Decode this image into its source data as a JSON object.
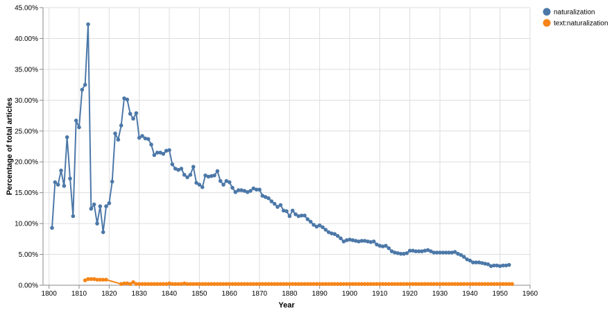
{
  "chart_data": {
    "type": "line",
    "xlabel": "Year",
    "ylabel": "Percentage of total articles",
    "xlim": [
      1798,
      1960
    ],
    "ylim": [
      0,
      0.45
    ],
    "x_ticks": [
      "1800",
      "1810",
      "1820",
      "1830",
      "1840",
      "1850",
      "1860",
      "1870",
      "1880",
      "1890",
      "1900",
      "1910",
      "1920",
      "1930",
      "1940",
      "1950",
      "1960"
    ],
    "y_ticks": [
      "0.00%",
      "5.00%",
      "10.00%",
      "15.00%",
      "20.00%",
      "25.00%",
      "30.00%",
      "35.00%",
      "40.00%",
      "45.00%"
    ],
    "grid": true,
    "legend_position": "top-right",
    "series": [
      {
        "name": "naturalization",
        "color": "#4c78a8",
        "points": [
          [
            1801,
            0.093
          ],
          [
            1802,
            0.167
          ],
          [
            1803,
            0.163
          ],
          [
            1804,
            0.186
          ],
          [
            1805,
            0.161
          ],
          [
            1806,
            0.24
          ],
          [
            1807,
            0.173
          ],
          [
            1808,
            0.112
          ],
          [
            1809,
            0.267
          ],
          [
            1810,
            0.256
          ],
          [
            1811,
            0.317
          ],
          [
            1812,
            0.325
          ],
          [
            1813,
            0.423
          ],
          [
            1814,
            0.124
          ],
          [
            1815,
            0.131
          ],
          [
            1816,
            0.1
          ],
          [
            1817,
            0.128
          ],
          [
            1818,
            0.086
          ],
          [
            1819,
            0.128
          ],
          [
            1820,
            0.133
          ],
          [
            1821,
            0.168
          ],
          [
            1822,
            0.246
          ],
          [
            1823,
            0.236
          ],
          [
            1824,
            0.259
          ],
          [
            1825,
            0.303
          ],
          [
            1826,
            0.301
          ],
          [
            1827,
            0.278
          ],
          [
            1828,
            0.27
          ],
          [
            1829,
            0.279
          ],
          [
            1830,
            0.239
          ],
          [
            1831,
            0.242
          ],
          [
            1832,
            0.238
          ],
          [
            1833,
            0.237
          ],
          [
            1834,
            0.228
          ],
          [
            1835,
            0.211
          ],
          [
            1836,
            0.215
          ],
          [
            1837,
            0.215
          ],
          [
            1838,
            0.213
          ],
          [
            1839,
            0.218
          ],
          [
            1840,
            0.219
          ],
          [
            1841,
            0.196
          ],
          [
            1842,
            0.189
          ],
          [
            1843,
            0.187
          ],
          [
            1844,
            0.189
          ],
          [
            1845,
            0.179
          ],
          [
            1846,
            0.175
          ],
          [
            1847,
            0.179
          ],
          [
            1848,
            0.192
          ],
          [
            1849,
            0.166
          ],
          [
            1850,
            0.163
          ],
          [
            1851,
            0.159
          ],
          [
            1852,
            0.178
          ],
          [
            1853,
            0.176
          ],
          [
            1854,
            0.177
          ],
          [
            1855,
            0.178
          ],
          [
            1856,
            0.185
          ],
          [
            1857,
            0.169
          ],
          [
            1858,
            0.163
          ],
          [
            1859,
            0.169
          ],
          [
            1860,
            0.167
          ],
          [
            1861,
            0.158
          ],
          [
            1862,
            0.151
          ],
          [
            1863,
            0.154
          ],
          [
            1864,
            0.154
          ],
          [
            1865,
            0.153
          ],
          [
            1866,
            0.151
          ],
          [
            1867,
            0.153
          ],
          [
            1868,
            0.157
          ],
          [
            1869,
            0.155
          ],
          [
            1870,
            0.155
          ],
          [
            1871,
            0.145
          ],
          [
            1872,
            0.143
          ],
          [
            1873,
            0.141
          ],
          [
            1874,
            0.136
          ],
          [
            1875,
            0.132
          ],
          [
            1876,
            0.127
          ],
          [
            1877,
            0.13
          ],
          [
            1878,
            0.121
          ],
          [
            1879,
            0.12
          ],
          [
            1880,
            0.112
          ],
          [
            1881,
            0.121
          ],
          [
            1882,
            0.115
          ],
          [
            1883,
            0.112
          ],
          [
            1884,
            0.113
          ],
          [
            1885,
            0.113
          ],
          [
            1886,
            0.107
          ],
          [
            1887,
            0.103
          ],
          [
            1888,
            0.098
          ],
          [
            1889,
            0.095
          ],
          [
            1890,
            0.097
          ],
          [
            1891,
            0.094
          ],
          [
            1892,
            0.09
          ],
          [
            1893,
            0.086
          ],
          [
            1894,
            0.084
          ],
          [
            1895,
            0.083
          ],
          [
            1896,
            0.08
          ],
          [
            1897,
            0.076
          ],
          [
            1898,
            0.071
          ],
          [
            1899,
            0.073
          ],
          [
            1900,
            0.074
          ],
          [
            1901,
            0.073
          ],
          [
            1902,
            0.072
          ],
          [
            1903,
            0.071
          ],
          [
            1904,
            0.072
          ],
          [
            1905,
            0.072
          ],
          [
            1906,
            0.071
          ],
          [
            1907,
            0.07
          ],
          [
            1908,
            0.071
          ],
          [
            1909,
            0.066
          ],
          [
            1910,
            0.064
          ],
          [
            1911,
            0.063
          ],
          [
            1912,
            0.064
          ],
          [
            1913,
            0.06
          ],
          [
            1914,
            0.055
          ],
          [
            1915,
            0.053
          ],
          [
            1916,
            0.052
          ],
          [
            1917,
            0.051
          ],
          [
            1918,
            0.051
          ],
          [
            1919,
            0.052
          ],
          [
            1920,
            0.056
          ],
          [
            1921,
            0.056
          ],
          [
            1922,
            0.055
          ],
          [
            1923,
            0.055
          ],
          [
            1924,
            0.055
          ],
          [
            1925,
            0.056
          ],
          [
            1926,
            0.057
          ],
          [
            1927,
            0.055
          ],
          [
            1928,
            0.053
          ],
          [
            1929,
            0.053
          ],
          [
            1930,
            0.053
          ],
          [
            1931,
            0.053
          ],
          [
            1932,
            0.053
          ],
          [
            1933,
            0.053
          ],
          [
            1934,
            0.053
          ],
          [
            1935,
            0.054
          ],
          [
            1936,
            0.051
          ],
          [
            1937,
            0.049
          ],
          [
            1938,
            0.046
          ],
          [
            1939,
            0.042
          ],
          [
            1940,
            0.04
          ],
          [
            1941,
            0.037
          ],
          [
            1942,
            0.037
          ],
          [
            1943,
            0.037
          ],
          [
            1944,
            0.036
          ],
          [
            1945,
            0.035
          ],
          [
            1946,
            0.034
          ],
          [
            1947,
            0.031
          ],
          [
            1948,
            0.032
          ],
          [
            1949,
            0.032
          ],
          [
            1950,
            0.031
          ],
          [
            1951,
            0.032
          ],
          [
            1952,
            0.032
          ],
          [
            1953,
            0.033
          ]
        ]
      },
      {
        "name": "text:naturalization",
        "color": "#f58518",
        "points": [
          [
            1812,
            0.008
          ],
          [
            1813,
            0.01
          ],
          [
            1814,
            0.01
          ],
          [
            1815,
            0.01
          ],
          [
            1816,
            0.009
          ],
          [
            1817,
            0.009
          ],
          [
            1818,
            0.009
          ],
          [
            1819,
            0.009
          ],
          [
            1824,
            0.002
          ],
          [
            1825,
            0.003
          ],
          [
            1826,
            0.003
          ],
          [
            1827,
            0.002
          ],
          [
            1828,
            0.005
          ],
          [
            1829,
            0.002
          ],
          [
            1830,
            0.002
          ],
          [
            1831,
            0.002
          ],
          [
            1832,
            0.002
          ],
          [
            1833,
            0.002
          ],
          [
            1834,
            0.002
          ],
          [
            1835,
            0.002
          ],
          [
            1836,
            0.002
          ],
          [
            1837,
            0.002
          ],
          [
            1838,
            0.002
          ],
          [
            1839,
            0.002
          ],
          [
            1840,
            0.003
          ],
          [
            1841,
            0.002
          ],
          [
            1842,
            0.002
          ],
          [
            1843,
            0.002
          ],
          [
            1844,
            0.002
          ],
          [
            1845,
            0.003
          ],
          [
            1846,
            0.002
          ],
          [
            1847,
            0.002
          ],
          [
            1848,
            0.002
          ],
          [
            1849,
            0.002
          ],
          [
            1850,
            0.002
          ],
          [
            1851,
            0.002
          ],
          [
            1852,
            0.002
          ],
          [
            1853,
            0.002
          ],
          [
            1854,
            0.002
          ],
          [
            1855,
            0.002
          ],
          [
            1856,
            0.002
          ],
          [
            1857,
            0.002
          ],
          [
            1858,
            0.002
          ],
          [
            1859,
            0.002
          ],
          [
            1860,
            0.002
          ],
          [
            1861,
            0.002
          ],
          [
            1862,
            0.002
          ],
          [
            1863,
            0.002
          ],
          [
            1864,
            0.002
          ],
          [
            1865,
            0.002
          ],
          [
            1866,
            0.002
          ],
          [
            1867,
            0.002
          ],
          [
            1868,
            0.002
          ],
          [
            1869,
            0.002
          ],
          [
            1870,
            0.002
          ],
          [
            1871,
            0.002
          ],
          [
            1872,
            0.002
          ],
          [
            1873,
            0.002
          ],
          [
            1874,
            0.002
          ],
          [
            1875,
            0.002
          ],
          [
            1876,
            0.002
          ],
          [
            1877,
            0.002
          ],
          [
            1878,
            0.002
          ],
          [
            1879,
            0.002
          ],
          [
            1880,
            0.002
          ],
          [
            1881,
            0.002
          ],
          [
            1882,
            0.002
          ],
          [
            1883,
            0.002
          ],
          [
            1884,
            0.002
          ],
          [
            1885,
            0.002
          ],
          [
            1886,
            0.002
          ],
          [
            1887,
            0.002
          ],
          [
            1888,
            0.002
          ],
          [
            1889,
            0.002
          ],
          [
            1890,
            0.002
          ],
          [
            1891,
            0.002
          ],
          [
            1892,
            0.002
          ],
          [
            1893,
            0.002
          ],
          [
            1894,
            0.002
          ],
          [
            1895,
            0.002
          ],
          [
            1896,
            0.002
          ],
          [
            1897,
            0.002
          ],
          [
            1898,
            0.002
          ],
          [
            1899,
            0.002
          ],
          [
            1900,
            0.002
          ],
          [
            1901,
            0.002
          ],
          [
            1902,
            0.002
          ],
          [
            1903,
            0.002
          ],
          [
            1904,
            0.002
          ],
          [
            1905,
            0.002
          ],
          [
            1906,
            0.002
          ],
          [
            1907,
            0.002
          ],
          [
            1908,
            0.002
          ],
          [
            1909,
            0.002
          ],
          [
            1910,
            0.002
          ],
          [
            1911,
            0.002
          ],
          [
            1912,
            0.002
          ],
          [
            1913,
            0.002
          ],
          [
            1914,
            0.002
          ],
          [
            1915,
            0.002
          ],
          [
            1916,
            0.002
          ],
          [
            1917,
            0.002
          ],
          [
            1918,
            0.002
          ],
          [
            1919,
            0.002
          ],
          [
            1920,
            0.002
          ],
          [
            1921,
            0.002
          ],
          [
            1922,
            0.002
          ],
          [
            1923,
            0.002
          ],
          [
            1924,
            0.002
          ],
          [
            1925,
            0.002
          ],
          [
            1926,
            0.002
          ],
          [
            1927,
            0.002
          ],
          [
            1928,
            0.002
          ],
          [
            1929,
            0.002
          ],
          [
            1930,
            0.002
          ],
          [
            1931,
            0.002
          ],
          [
            1932,
            0.002
          ],
          [
            1933,
            0.002
          ],
          [
            1934,
            0.002
          ],
          [
            1935,
            0.002
          ],
          [
            1936,
            0.002
          ],
          [
            1937,
            0.002
          ],
          [
            1938,
            0.002
          ],
          [
            1939,
            0.002
          ],
          [
            1940,
            0.002
          ],
          [
            1941,
            0.002
          ],
          [
            1942,
            0.002
          ],
          [
            1943,
            0.002
          ],
          [
            1944,
            0.002
          ],
          [
            1945,
            0.002
          ],
          [
            1946,
            0.002
          ],
          [
            1947,
            0.002
          ],
          [
            1948,
            0.002
          ],
          [
            1949,
            0.002
          ],
          [
            1950,
            0.002
          ],
          [
            1951,
            0.002
          ],
          [
            1952,
            0.002
          ],
          [
            1953,
            0.002
          ],
          [
            1954,
            0.002
          ]
        ]
      }
    ]
  }
}
